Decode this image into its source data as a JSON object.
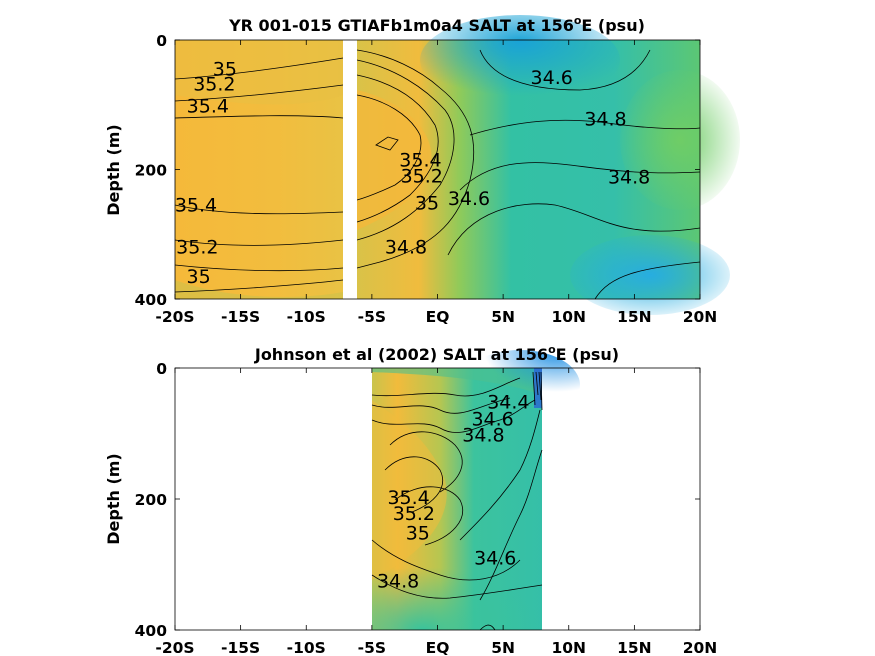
{
  "chart_data": [
    {
      "type": "contour",
      "title": "YR 001-015 GTIAFb1m0a4 SALT at 156",
      "title_superscript": "o",
      "title_suffix": "E (psu)",
      "xlabel": "",
      "ylabel": "Depth (m)",
      "xlim": [
        -20,
        20
      ],
      "ylim": [
        400,
        0
      ],
      "x_ticks": [
        -20,
        -15,
        -10,
        -5,
        0,
        5,
        10,
        15,
        20
      ],
      "x_tick_labels": [
        "-20S",
        "-15S",
        "-10S",
        "-5S",
        "EQ",
        "5N",
        "10N",
        "15N",
        "20N"
      ],
      "y_ticks": [
        0,
        200,
        400
      ],
      "y_tick_labels": [
        "0",
        "200",
        "400"
      ],
      "data_gap_lat": [
        -7.5,
        -6.5
      ],
      "contour_labels": [
        {
          "text": "35",
          "lat": -16.2,
          "depth": 55
        },
        {
          "text": "35.2",
          "lat": -17.0,
          "depth": 78
        },
        {
          "text": "35.4",
          "lat": -17.5,
          "depth": 112
        },
        {
          "text": "35.4",
          "lat": -18.4,
          "depth": 265
        },
        {
          "text": "35.2",
          "lat": -18.3,
          "depth": 330
        },
        {
          "text": "35",
          "lat": -18.2,
          "depth": 375
        },
        {
          "text": "34.6",
          "lat": 8.7,
          "depth": 68
        },
        {
          "text": "34.8",
          "lat": 12.8,
          "depth": 132
        },
        {
          "text": "34.8",
          "lat": 14.6,
          "depth": 222
        },
        {
          "text": "35.4",
          "lat": -1.3,
          "depth": 195
        },
        {
          "text": "35.2",
          "lat": -1.2,
          "depth": 220
        },
        {
          "text": "35",
          "lat": -0.8,
          "depth": 262
        },
        {
          "text": "34.6",
          "lat": 2.4,
          "depth": 255
        },
        {
          "text": "34.8",
          "lat": -2.4,
          "depth": 330
        }
      ]
    },
    {
      "type": "contour",
      "title": "Johnson et al (2002) SALT at 156",
      "title_superscript": "o",
      "title_suffix": "E (psu)",
      "xlabel": "",
      "ylabel": "Depth (m)",
      "xlim": [
        -20,
        20
      ],
      "ylim": [
        400,
        0
      ],
      "x_ticks": [
        -20,
        -15,
        -10,
        -5,
        0,
        5,
        10,
        15,
        20
      ],
      "x_tick_labels": [
        "-20S",
        "-15S",
        "-10S",
        "-5S",
        "EQ",
        "5N",
        "10N",
        "15N",
        "20N"
      ],
      "y_ticks": [
        0,
        200,
        400
      ],
      "y_tick_labels": [
        "0",
        "200",
        "400"
      ],
      "data_extent_lat": [
        -5,
        8
      ],
      "contour_labels": [
        {
          "text": "34.4",
          "lat": 5.4,
          "depth": 62
        },
        {
          "text": "34.6",
          "lat": 4.2,
          "depth": 88
        },
        {
          "text": "34.8",
          "lat": 3.5,
          "depth": 112
        },
        {
          "text": "35.4",
          "lat": -2.2,
          "depth": 208
        },
        {
          "text": "35.2",
          "lat": -1.8,
          "depth": 232
        },
        {
          "text": "35",
          "lat": -1.5,
          "depth": 262
        },
        {
          "text": "34.6",
          "lat": 4.4,
          "depth": 300
        },
        {
          "text": "34.8",
          "lat": -3.0,
          "depth": 335
        }
      ]
    }
  ]
}
